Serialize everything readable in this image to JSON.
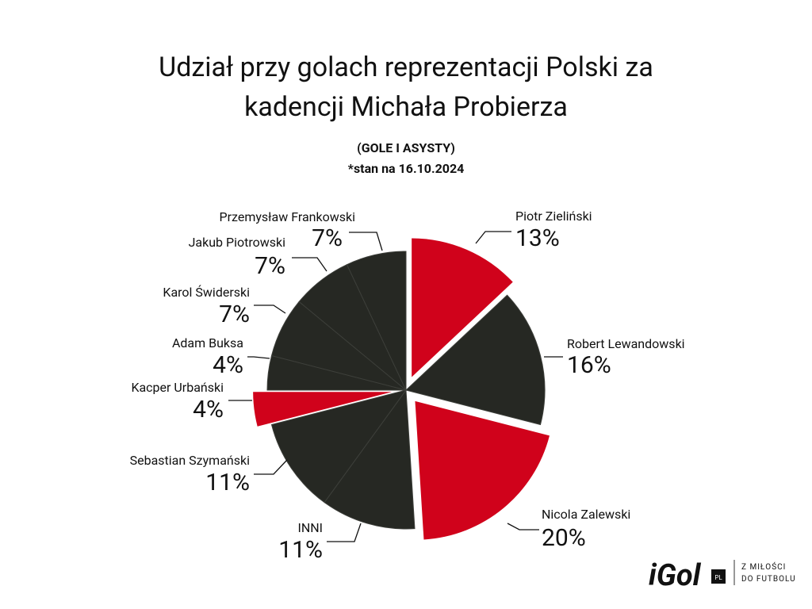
{
  "chart_data": {
    "type": "pie",
    "title": [
      "Udział przy golach reprezentacji Polski za",
      "kadencji Michała Probierza"
    ],
    "subtitle": [
      "(GOLE I ASYSTY)",
      "*stan na 16.10.2024"
    ],
    "categories": [
      "Piotr Zieliński",
      "Robert Lewandowski",
      "Nicola Zalewski",
      "INNI",
      "Sebastian Szymański",
      "Kacper Urbański",
      "Adam Buksa",
      "Karol Świderski",
      "Jakub Piotrowski",
      "Przemysław Frankowski"
    ],
    "values": [
      13,
      16,
      20,
      11,
      11,
      4,
      4,
      7,
      7,
      7
    ],
    "value_labels": [
      "13%",
      "16%",
      "20%",
      "11%",
      "11%",
      "4%",
      "4%",
      "7%",
      "7%",
      "7%"
    ],
    "colors": [
      "#d0021b",
      "#262823",
      "#d0021b",
      "#262823",
      "#262823",
      "#d0021b",
      "#262823",
      "#262823",
      "#262823",
      "#262823"
    ],
    "explode": [
      true,
      false,
      true,
      false,
      false,
      true,
      false,
      false,
      false,
      false
    ]
  },
  "logo": {
    "name": "iGol",
    "badge": "PL",
    "tagline": [
      "Z MIŁOŚCI",
      "DO FUTBOLU"
    ]
  }
}
